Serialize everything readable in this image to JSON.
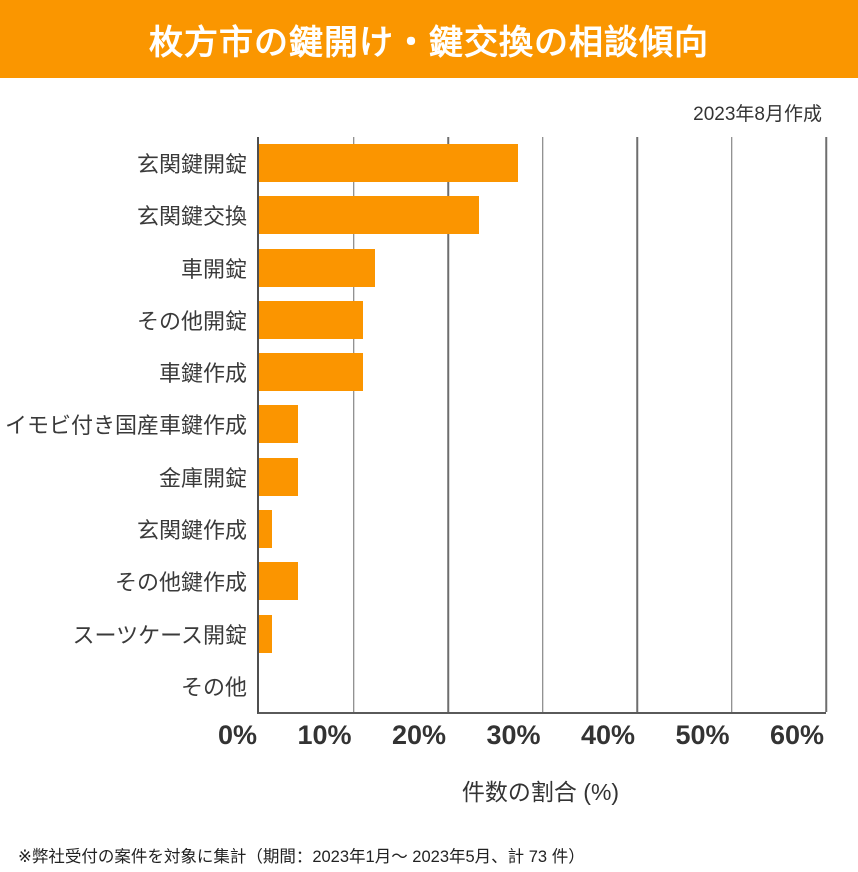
{
  "header": {
    "title": "枚方市の鍵開け・鍵交換の相談傾向",
    "bg_color": "#FA9600",
    "text_color": "#FFFFFF"
  },
  "meta": {
    "created_note": "2023年8月作成"
  },
  "chart_data": {
    "type": "bar",
    "orientation": "horizontal",
    "title": "枚方市の鍵開け・鍵交換の相談傾向",
    "categories": [
      "玄関鍵開錠",
      "玄関鍵交換",
      "車開錠",
      "その他開錠",
      "車鍵作成",
      "イモビ付き国産車鍵作成",
      "金庫開錠",
      "玄関鍵作成",
      "その他鍵作成",
      "スーツケース開錠",
      "その他"
    ],
    "values": [
      27.4,
      23.3,
      12.3,
      11.0,
      11.0,
      4.1,
      4.1,
      1.4,
      4.1,
      1.4,
      0
    ],
    "unit": "%",
    "xlabel": "件数の割合 (%)",
    "xlim": [
      0,
      60
    ],
    "x_ticks": [
      "0%",
      "10%",
      "20%",
      "30%",
      "40%",
      "50%",
      "60%"
    ],
    "grid": "vertical",
    "legend": "none",
    "bar_color": "#FB9500"
  },
  "footnote": "※弊社受付の案件を対象に集計（期間：2023年1月～ 2023年5月、計 73 件）"
}
